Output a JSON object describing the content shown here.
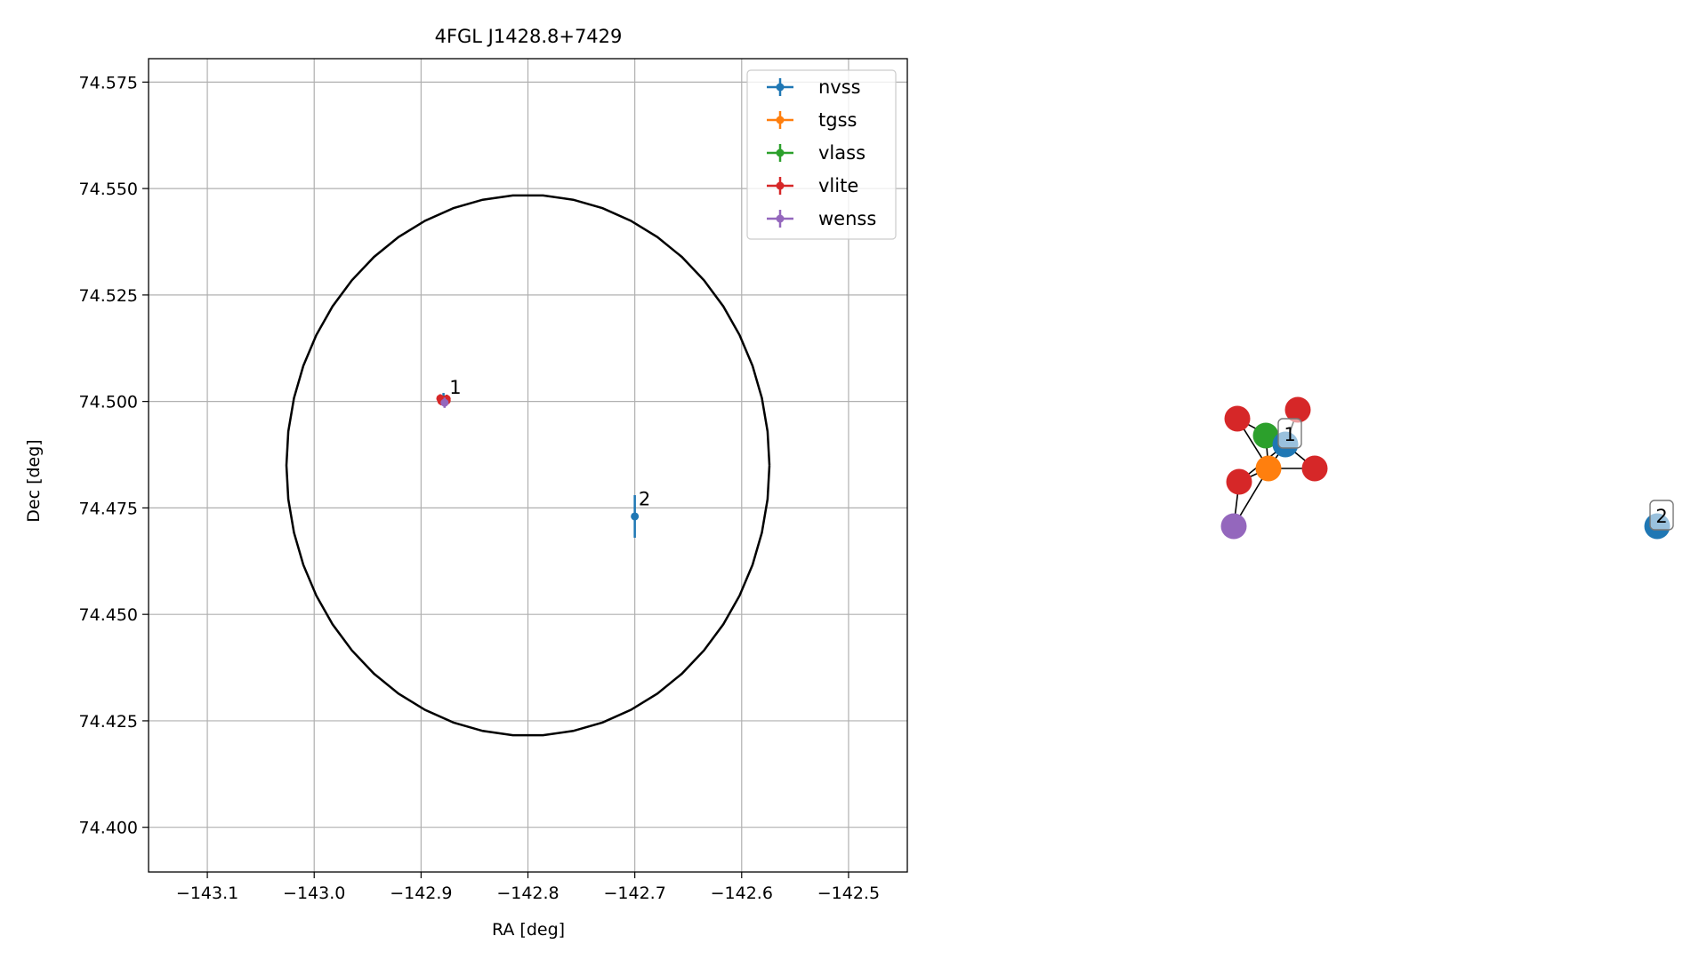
{
  "chart_data": [
    {
      "type": "scatter",
      "title": "4FGL J1428.8+7429",
      "xlabel": "RA [deg]",
      "ylabel": "Dec [deg]",
      "xlim": [
        -143.155,
        -142.445
      ],
      "ylim": [
        74.3895,
        74.5805
      ],
      "xticks": [
        -143.1,
        -143.0,
        -142.9,
        -142.8,
        -142.7,
        -142.6,
        -142.5
      ],
      "xtick_labels": [
        "−143.1",
        "−143.0",
        "−142.9",
        "−142.8",
        "−142.7",
        "−142.6",
        "−142.5"
      ],
      "yticks": [
        74.4,
        74.425,
        74.45,
        74.475,
        74.5,
        74.525,
        74.55,
        74.575
      ],
      "ytick_labels": [
        "74.400",
        "74.425",
        "74.450",
        "74.475",
        "74.500",
        "74.525",
        "74.550",
        "74.575"
      ],
      "grid": true,
      "legend_position": "top-right",
      "ellipse": {
        "center_ra": -142.8,
        "center_dec": 74.485,
        "semi_ra": 0.226,
        "semi_dec": 0.0635,
        "color": "#000000"
      },
      "series": [
        {
          "name": "nvss",
          "color": "#1f77b4",
          "points": [
            {
              "ra": -142.879,
              "dec": 74.5005,
              "ra_err": 0.002,
              "dec_err": 0.0015
            },
            {
              "ra": -142.7,
              "dec": 74.473,
              "ra_err": 0.001,
              "dec_err": 0.005
            }
          ]
        },
        {
          "name": "tgss",
          "color": "#ff7f0e",
          "points": [
            {
              "ra": -142.879,
              "dec": 74.5002,
              "ra_err": 0.002,
              "dec_err": 0.001
            }
          ]
        },
        {
          "name": "vlass",
          "color": "#2ca02c",
          "points": [
            {
              "ra": -142.879,
              "dec": 74.5004,
              "ra_err": 0.001,
              "dec_err": 0.0008
            }
          ]
        },
        {
          "name": "vlite",
          "color": "#d62728",
          "points": [
            {
              "ra": -142.882,
              "dec": 74.5007,
              "ra_err": 0.002,
              "dec_err": 0.001
            },
            {
              "ra": -142.876,
              "dec": 74.5006,
              "ra_err": 0.002,
              "dec_err": 0.001
            },
            {
              "ra": -142.881,
              "dec": 74.5001,
              "ra_err": 0.002,
              "dec_err": 0.001
            },
            {
              "ra": -142.876,
              "dec": 74.5002,
              "ra_err": 0.002,
              "dec_err": 0.001
            }
          ]
        },
        {
          "name": "wenss",
          "color": "#9467bd",
          "points": [
            {
              "ra": -142.878,
              "dec": 74.4997,
              "ra_err": 0.002,
              "dec_err": 0.0012
            }
          ]
        }
      ],
      "annotations": [
        {
          "text": "1",
          "ra": -142.876,
          "dec": 74.5005
        },
        {
          "text": "2",
          "ra": -142.699,
          "dec": 74.4744
        }
      ]
    },
    {
      "type": "network",
      "nodes": [
        {
          "series": "vlite",
          "color": "#d62728"
        },
        {
          "series": "vlite",
          "color": "#d62728"
        },
        {
          "series": "vlass",
          "color": "#2ca02c"
        },
        {
          "series": "nvss",
          "color": "#1f77b4"
        },
        {
          "series": "tgss",
          "color": "#ff7f0e"
        },
        {
          "series": "vlite",
          "color": "#d62728"
        },
        {
          "series": "vlite",
          "color": "#d62728"
        },
        {
          "series": "wenss",
          "color": "#9467bd"
        },
        {
          "series": "nvss",
          "color": "#1f77b4"
        }
      ],
      "edges": [
        [
          0,
          3
        ],
        [
          0,
          4
        ],
        [
          1,
          3
        ],
        [
          2,
          3
        ],
        [
          2,
          4
        ],
        [
          3,
          4
        ],
        [
          3,
          5
        ],
        [
          3,
          6
        ],
        [
          4,
          5
        ],
        [
          4,
          6
        ],
        [
          4,
          7
        ],
        [
          6,
          7
        ]
      ],
      "labels": [
        {
          "text": "1",
          "node": 3
        },
        {
          "text": "2",
          "node": 8
        }
      ]
    }
  ]
}
